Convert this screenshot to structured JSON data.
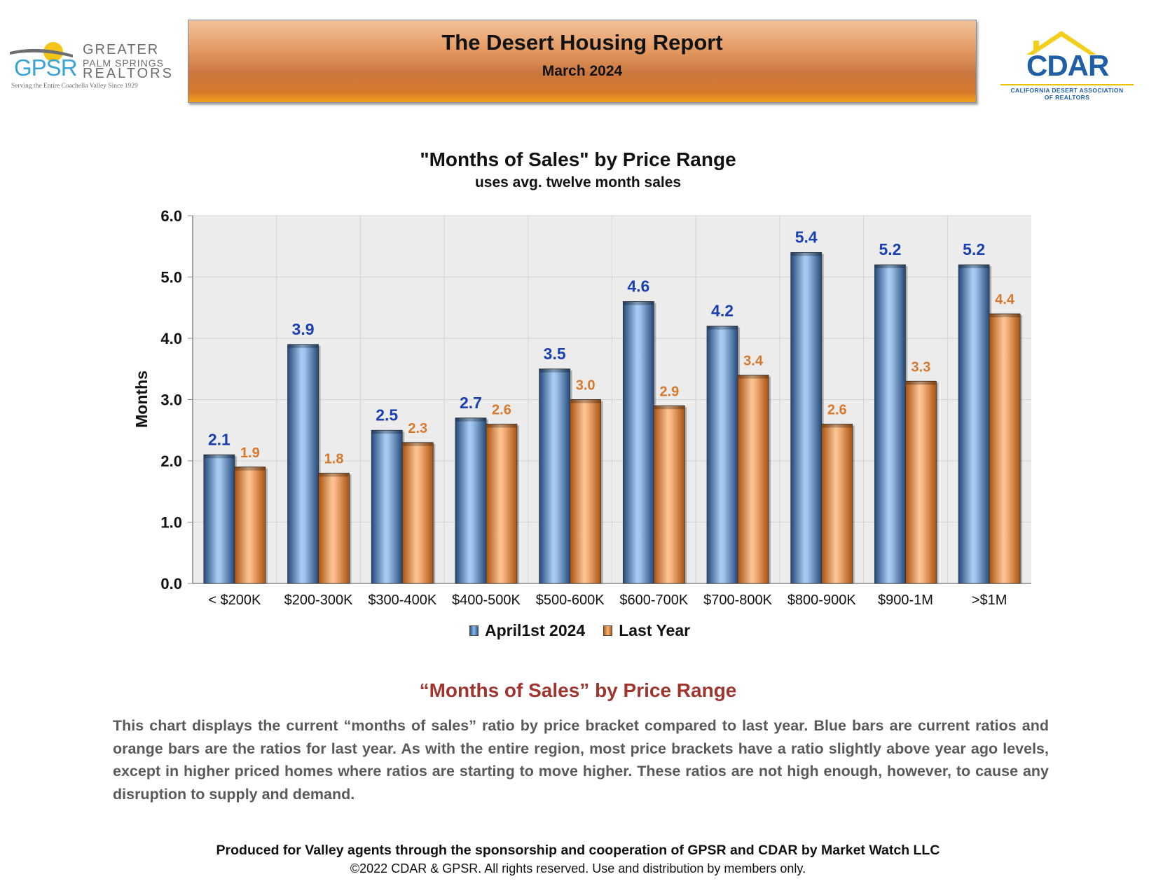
{
  "header": {
    "gpsr_logo": {
      "abbr": "GPSR",
      "line1": "GREATER",
      "line2": "PALM SPRINGS",
      "line3": "REALTORS",
      "tagline": "Serving the Entire Coachella Valley Since 1929"
    },
    "banner_title": "The Desert Housing Report",
    "banner_subtitle": "March 2024",
    "cdar_logo": {
      "word": "CDAR",
      "caption_line1": "CALIFORNIA DESERT ASSOCIATION",
      "caption_line2": "OF REALTORS"
    }
  },
  "colors": {
    "current_series": "#2c5a93",
    "last_year_series": "#d9782a",
    "current_label": "#1a3fb0",
    "last_year_label": "#d9782a",
    "heading": "#a0352f"
  },
  "chart_data": {
    "type": "bar",
    "title": "\"Months of Sales\" by Price Range",
    "subtitle": "uses avg. twelve month sales",
    "xlabel": "",
    "ylabel": "Months",
    "ylim": [
      0,
      6
    ],
    "y_ticks": [
      "0.0",
      "1.0",
      "2.0",
      "3.0",
      "4.0",
      "5.0",
      "6.0"
    ],
    "grid": true,
    "legend_position": "bottom",
    "categories": [
      "< $200K",
      "$200-300K",
      "$300-400K",
      "$400-500K",
      "$500-600K",
      "$600-700K",
      "$700-800K",
      "$800-900K",
      "$900-1M",
      ">$1M"
    ],
    "series": [
      {
        "name": "April1st 2024",
        "values": [
          2.1,
          3.9,
          2.5,
          2.7,
          3.5,
          4.6,
          4.2,
          5.4,
          5.2,
          5.2
        ]
      },
      {
        "name": "Last Year",
        "values": [
          1.9,
          1.8,
          2.3,
          2.6,
          3.0,
          2.9,
          3.4,
          2.6,
          3.3,
          4.4
        ]
      }
    ]
  },
  "description": {
    "heading": "“Months of Sales” by Price Range",
    "body": "This chart displays the current “months of sales” ratio by price bracket compared to last year. Blue bars are current ratios and orange bars are the ratios for last year. As with the entire region, most price brackets have a ratio slightly above year ago levels, except in higher priced homes where ratios are starting to move higher. These ratios are not high enough, however, to cause any disruption to supply and demand."
  },
  "footer": {
    "line1": "Produced for Valley agents through the sponsorship and cooperation of GPSR and CDAR by Market Watch LLC",
    "line2": "©2022 CDAR & GPSR.  All rights reserved.  Use and distribution by members only."
  }
}
